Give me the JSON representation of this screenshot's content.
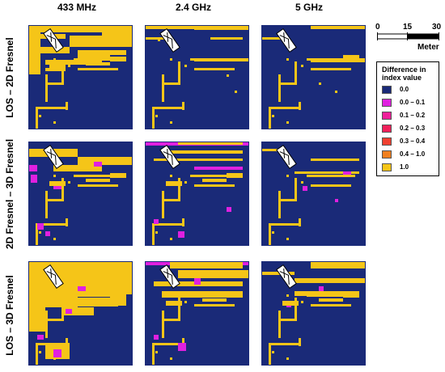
{
  "columns": [
    "433 MHz",
    "2.4 GHz",
    "5 GHz"
  ],
  "rows": [
    "LOS – 2D Fresnel",
    "2D Fresnel – 3D Fresnel",
    "LOS – 3D Fresnel"
  ],
  "scale": {
    "ticks": [
      "0",
      "15",
      "30"
    ],
    "unit": "Meter"
  },
  "legend": {
    "title_line1": "Difference in",
    "title_line2": "index value",
    "items": [
      {
        "label": "0.0",
        "color": "#1a2a78"
      },
      {
        "label": "0.0 – 0.1",
        "color": "#e020e0"
      },
      {
        "label": "0.1 – 0.2",
        "color": "#f0209a"
      },
      {
        "label": "0.2 – 0.3",
        "color": "#f0205a"
      },
      {
        "label": "0.3 – 0.4",
        "color": "#f04030"
      },
      {
        "label": "0.4 – 1.0",
        "color": "#f08020"
      },
      {
        "label": "1.0",
        "color": "#f5c518"
      }
    ]
  },
  "colors": {
    "background": "#1a2a78",
    "high": "#f5c518",
    "mid": "#e020e0"
  }
}
